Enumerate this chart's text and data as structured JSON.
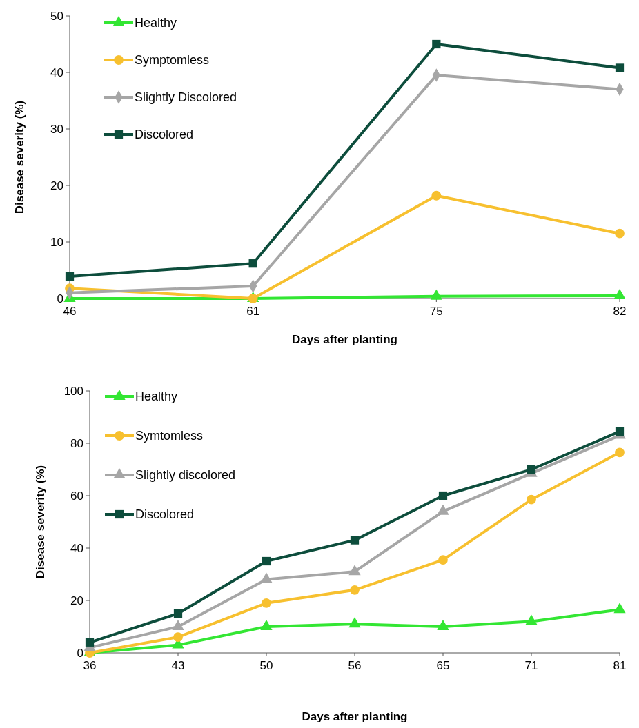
{
  "chart_data": [
    {
      "type": "line",
      "xlabel": "Days after planting",
      "ylabel": "Disease severity (%)",
      "categories": [
        "46",
        "61",
        "75",
        "82"
      ],
      "ylim": [
        0,
        50
      ],
      "yticks": [
        0,
        10,
        20,
        30,
        40,
        50
      ],
      "legend": "top left",
      "grid": false,
      "series": [
        {
          "name": "Healthy",
          "color": "#33e633",
          "marker": "triangle",
          "values": [
            0,
            0,
            0.4,
            0.5
          ]
        },
        {
          "name": "Symptomless",
          "color": "#f7c02f",
          "marker": "circle",
          "values": [
            1.8,
            0,
            18.2,
            11.5
          ]
        },
        {
          "name": "Slightly Discolored",
          "color": "#a6a6a6",
          "marker": "diamond",
          "values": [
            1.0,
            2.2,
            39.5,
            37
          ]
        },
        {
          "name": "Discolored",
          "color": "#0d4d3c",
          "marker": "square",
          "values": [
            3.9,
            6.2,
            45,
            40.8
          ]
        }
      ]
    },
    {
      "type": "line",
      "xlabel": "Days after planting",
      "ylabel": "Disease severity (%)",
      "categories": [
        "36",
        "43",
        "50",
        "56",
        "65",
        "71",
        "81"
      ],
      "ylim": [
        0,
        100
      ],
      "yticks": [
        0,
        20,
        40,
        60,
        80,
        100
      ],
      "legend": "top left",
      "grid": false,
      "series": [
        {
          "name": "Healthy",
          "color": "#33e633",
          "marker": "triangle",
          "values": [
            0,
            3,
            10,
            11,
            10,
            12,
            16.5
          ]
        },
        {
          "name": "Symtomless",
          "color": "#f7c02f",
          "marker": "circle",
          "values": [
            0,
            6,
            19,
            24,
            35.5,
            58.5,
            76.5
          ]
        },
        {
          "name": "Slightly discolored",
          "color": "#a6a6a6",
          "marker": "triangle",
          "values": [
            2,
            10,
            28,
            31,
            54,
            68.5,
            83
          ]
        },
        {
          "name": "Discolored",
          "color": "#0d4d3c",
          "marker": "square",
          "values": [
            4,
            15,
            35,
            43,
            60,
            70,
            84.5
          ]
        }
      ]
    }
  ]
}
